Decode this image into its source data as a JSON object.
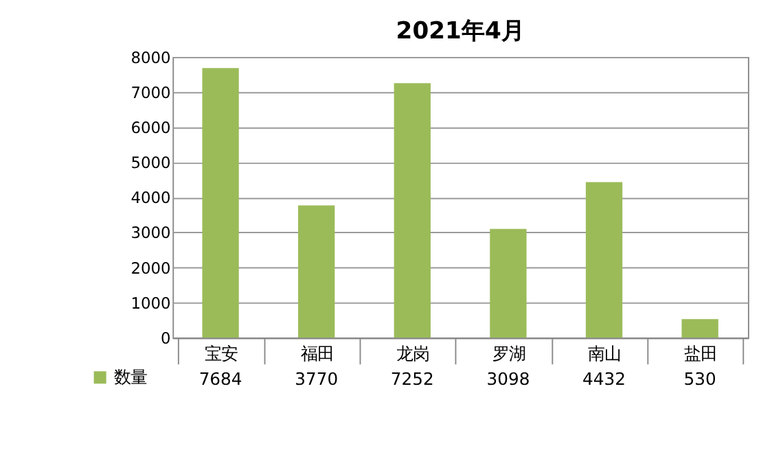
{
  "chart_data": {
    "type": "bar",
    "title": "2021年4月",
    "categories": [
      "宝安",
      "福田",
      "龙岗",
      "罗湖",
      "南山",
      "盐田"
    ],
    "series": [
      {
        "name": "数量",
        "color": "#9bbb59",
        "values": [
          7684,
          3770,
          7252,
          3098,
          4432,
          530
        ]
      }
    ],
    "ylim": [
      0,
      8000
    ],
    "yticks": [
      0,
      1000,
      2000,
      3000,
      4000,
      5000,
      6000,
      7000,
      8000
    ],
    "grid": "y",
    "legend": "bottom left",
    "data_labels": true
  }
}
